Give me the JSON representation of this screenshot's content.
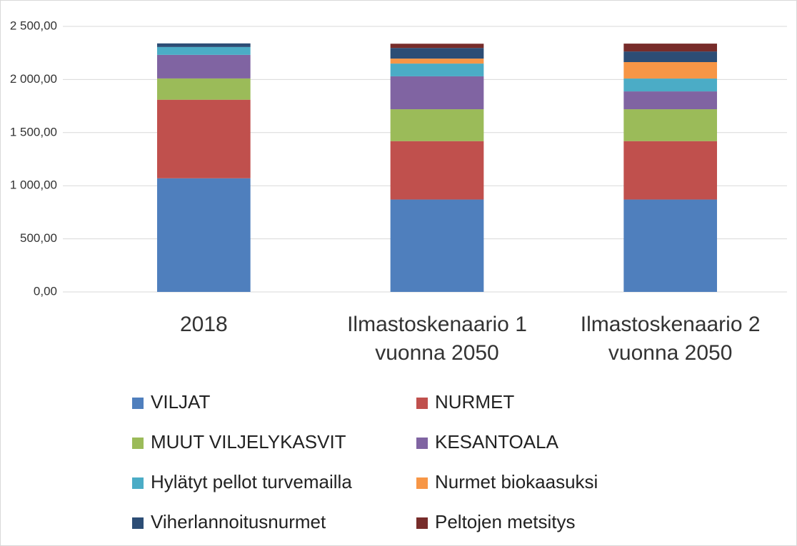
{
  "chart_data": {
    "type": "stacked_bar",
    "categories": [
      "2018",
      "Ilmastoskenaario 1 vuonna 2050",
      "Ilmastoskenaario 2 vuonna 2050"
    ],
    "series": [
      {
        "name": "VILJAT",
        "color": "#4f7fbd",
        "values": [
          1070,
          870,
          870
        ]
      },
      {
        "name": "NURMET",
        "color": "#c0504d",
        "values": [
          740,
          550,
          550
        ]
      },
      {
        "name": "MUUT VILJELYKASVIT",
        "color": "#9bbb59",
        "values": [
          200,
          300,
          300
        ]
      },
      {
        "name": "KESANTOALA",
        "color": "#8064a2",
        "values": [
          222,
          310,
          168
        ]
      },
      {
        "name": "Hylätyt pellot turvemailla",
        "color": "#4bacc6",
        "values": [
          74,
          120,
          121
        ]
      },
      {
        "name": "Nurmet biokaasuksi",
        "color": "#f79646",
        "values": [
          0,
          47,
          155
        ]
      },
      {
        "name": "Viherlannoitusnurmet",
        "color": "#2c4d75",
        "values": [
          34,
          100,
          100
        ]
      },
      {
        "name": "Peltojen metsitys",
        "color": "#772c2a",
        "values": [
          0,
          40,
          74
        ]
      }
    ],
    "ylim": [
      0,
      2500
    ],
    "yticks": [
      {
        "value": 0,
        "label": "0,00"
      },
      {
        "value": 500,
        "label": "500,00"
      },
      {
        "value": 1000,
        "label": "1 000,00"
      },
      {
        "value": 1500,
        "label": "1 500,00"
      },
      {
        "value": 2000,
        "label": "2 000,00"
      },
      {
        "value": 2500,
        "label": "2 500,00"
      }
    ],
    "grid": true,
    "legend": "bottom"
  }
}
